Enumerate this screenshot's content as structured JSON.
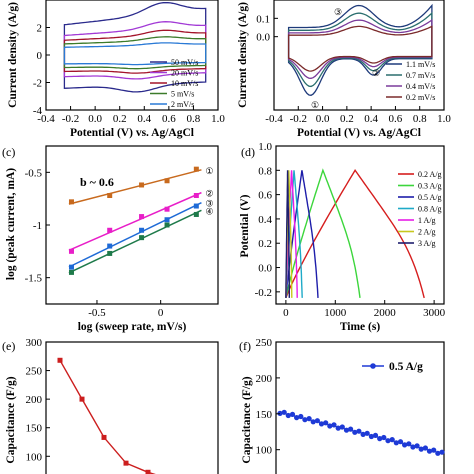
{
  "chart_data": [
    {
      "id": "a",
      "type": "line",
      "xlabel": "Potential (V) vs. Ag/AgCl",
      "ylabel": "Current density (A/g)",
      "xlim": [
        -0.4,
        1.0
      ],
      "ylim": [
        -4,
        4
      ],
      "xticks": [
        "-0.4",
        "-0.2",
        "0.0",
        "0.2",
        "0.4",
        "0.6",
        "0.8",
        "1.0"
      ],
      "yticks": [
        "-4",
        "-2",
        "0",
        "2"
      ],
      "legend_position": "lower-right",
      "series": [
        {
          "name": "50 mV/s",
          "color": "#2a2a8c",
          "amp": 1.0
        },
        {
          "name": "20 mV/s",
          "color": "#a23ad6",
          "amp": 0.62
        },
        {
          "name": "10 mV/s",
          "color": "#a3142a",
          "amp": 0.45
        },
        {
          "name": "5 mV/s",
          "color": "#3c7b2a",
          "amp": 0.32
        },
        {
          "name": "2 mV/s",
          "color": "#2a7ad6",
          "amp": 0.2
        }
      ]
    },
    {
      "id": "b",
      "type": "line",
      "xlabel": "Potential (V) vs. Ag/AgCl",
      "ylabel": "Current density (A/g)",
      "xlim": [
        -0.4,
        1.0
      ],
      "ylim": [
        -0.4,
        0.2
      ],
      "xticks": [
        "-0.4",
        "-0.2",
        "0.0",
        "0.2",
        "0.4",
        "0.6",
        "0.8",
        "1.0"
      ],
      "yticks": [
        "0.0",
        "0.1"
      ],
      "legend_position": "lower-right",
      "markers": [
        "①",
        "②",
        "③"
      ],
      "series": [
        {
          "name": "1.1 mV/s",
          "color": "#1e3a7a",
          "amp": 1.0
        },
        {
          "name": "0.7 mV/s",
          "color": "#2a6e6e",
          "amp": 0.78
        },
        {
          "name": "0.4 mV/s",
          "color": "#7a3a9a",
          "amp": 0.58
        },
        {
          "name": "0.2 mV/s",
          "color": "#7a2a2a",
          "amp": 0.4
        }
      ]
    },
    {
      "id": "c",
      "type": "scatter",
      "xlabel": "log (sweep rate, mV/s)",
      "ylabel": "log (peak current, mA)",
      "xlim": [
        -0.9,
        0.45
      ],
      "ylim": [
        -1.75,
        -0.25
      ],
      "xticks": [
        -0.5,
        0.0
      ],
      "yticks": [
        -0.5,
        -1.0,
        -1.5
      ],
      "annotation": "b ~ 0.6",
      "series": [
        {
          "name": "①",
          "color": "#c86a1e",
          "x": [
            -0.7,
            -0.4,
            -0.15,
            0.05,
            0.28
          ],
          "y": [
            -0.78,
            -0.72,
            -0.62,
            -0.58,
            -0.47
          ]
        },
        {
          "name": "②",
          "color": "#e81ec8",
          "x": [
            -0.7,
            -0.4,
            -0.15,
            0.05,
            0.28
          ],
          "y": [
            -1.25,
            -1.05,
            -0.92,
            -0.85,
            -0.72
          ]
        },
        {
          "name": "③",
          "color": "#1e6ad6",
          "x": [
            -0.7,
            -0.4,
            -0.15,
            0.05,
            0.28
          ],
          "y": [
            -1.4,
            -1.2,
            -1.05,
            -0.95,
            -0.82
          ]
        },
        {
          "name": "④",
          "color": "#1e7a4a",
          "x": [
            -0.7,
            -0.4,
            -0.15,
            0.05,
            0.28
          ],
          "y": [
            -1.45,
            -1.27,
            -1.12,
            -1.0,
            -0.9
          ]
        }
      ]
    },
    {
      "id": "d",
      "type": "line",
      "xlabel": "Time (s)",
      "ylabel": "Potential (V)",
      "xlim": [
        -200,
        3200
      ],
      "ylim": [
        -0.3,
        1.0
      ],
      "xticks": [
        0,
        1000,
        2000,
        3000
      ],
      "yticks": [
        "-0.2",
        "0.0",
        "0.2",
        "0.4",
        "0.6",
        "0.8",
        "1.0"
      ],
      "series": [
        {
          "name": "0.2 A/g",
          "color": "#d61e1e",
          "t_end": 2800
        },
        {
          "name": "0.3 A/g",
          "color": "#3cd63c",
          "t_end": 1500
        },
        {
          "name": "0.5 A/g",
          "color": "#1e1eaa",
          "t_end": 650
        },
        {
          "name": "0.8 A/g",
          "color": "#1eaac8",
          "t_end": 330
        },
        {
          "name": "1 A/g",
          "color": "#e81ee8",
          "t_end": 230
        },
        {
          "name": "2 A/g",
          "color": "#c8c81e",
          "t_end": 120
        },
        {
          "name": "3 A/g",
          "color": "#1e1e6e",
          "t_end": 70
        }
      ]
    },
    {
      "id": "e",
      "type": "line",
      "ylabel": "Capacitance (F/g)",
      "ylim": [
        55,
        300
      ],
      "yticks": [
        100,
        150,
        200,
        250,
        300
      ],
      "series": [
        {
          "color": "#cc1e1e",
          "x": [
            0.2,
            0.3,
            0.5,
            0.8,
            1,
            2,
            3
          ],
          "y": [
            268,
            200,
            133,
            88,
            72,
            60,
            58
          ]
        }
      ]
    },
    {
      "id": "f",
      "type": "line",
      "ylabel": "Capacitance (F/g)",
      "ylim": [
        55,
        250
      ],
      "yticks": [
        100,
        150,
        200,
        250
      ],
      "legend": "0.5 A/g",
      "series": [
        {
          "name": "0.5 A/g",
          "color": "#1e3ad6",
          "y_start": 152,
          "y_end": 95
        }
      ]
    }
  ],
  "panel_labels": [
    "(c)",
    "(d)",
    "(e)",
    "(f)"
  ]
}
